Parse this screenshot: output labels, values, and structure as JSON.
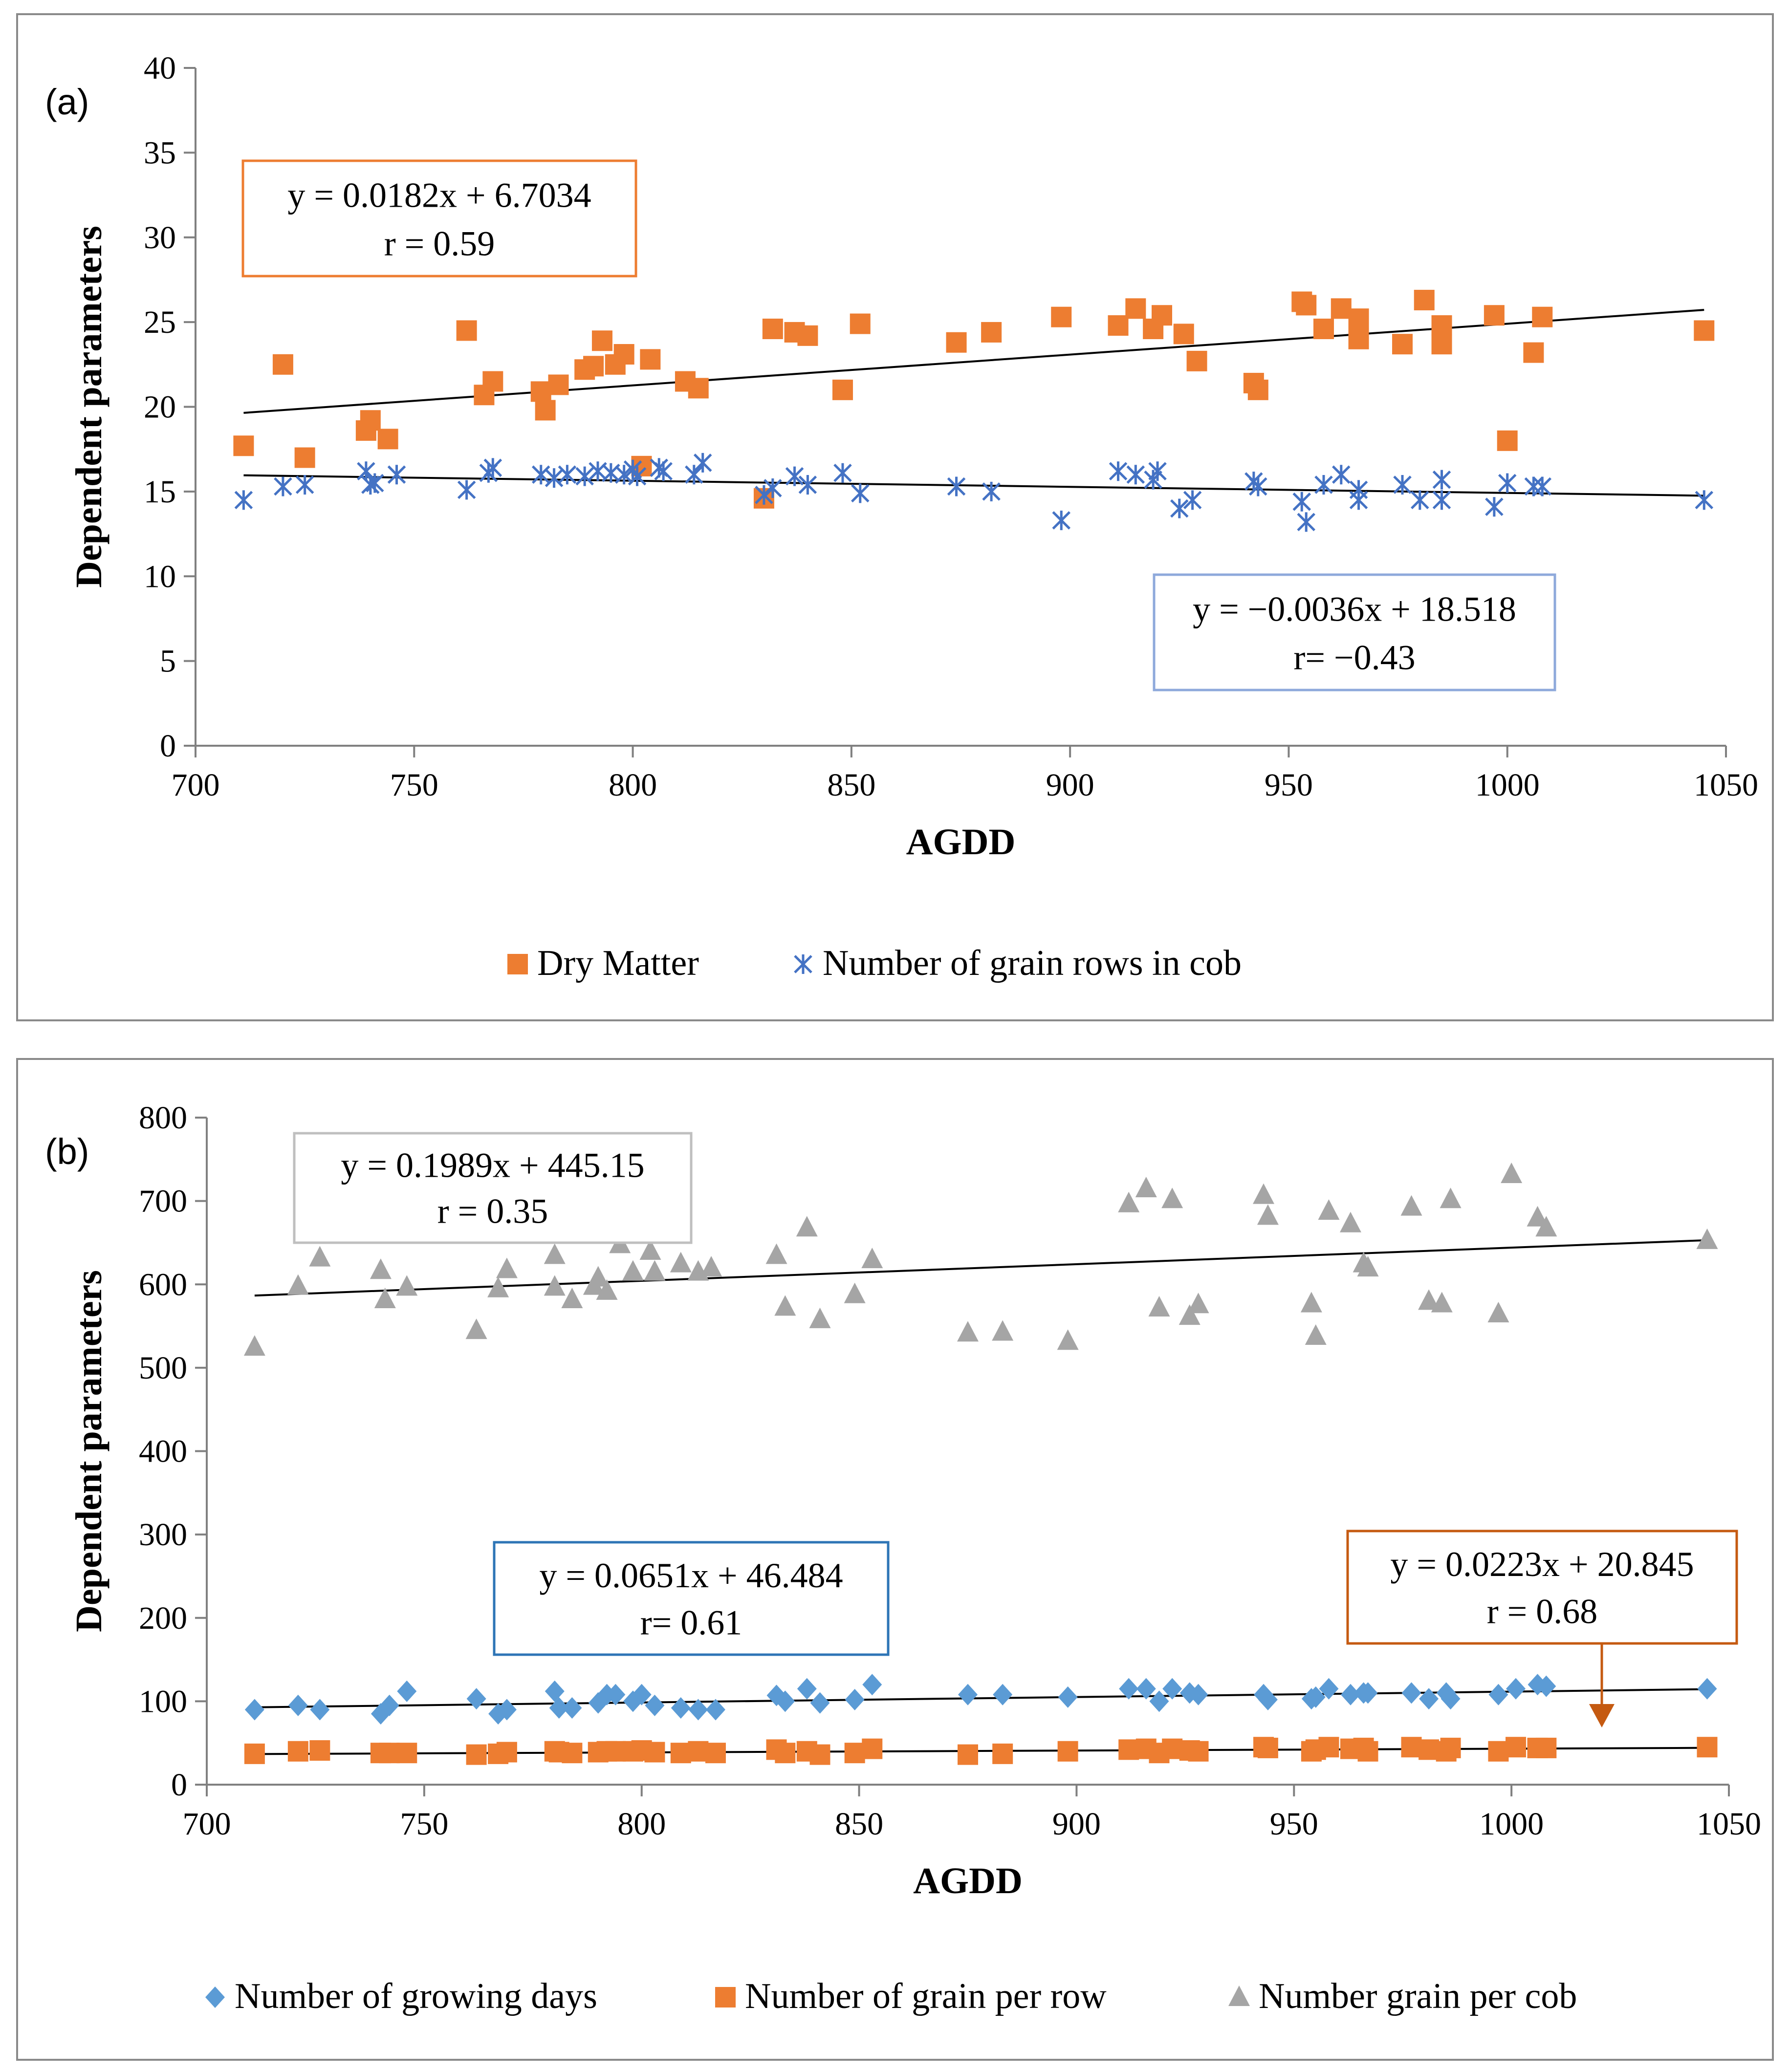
{
  "chart_data": [
    {
      "type": "scatter",
      "panel_label": "(a)",
      "xlabel": "AGDD",
      "ylabel": "Dependent parameters",
      "xlim": [
        700,
        1050
      ],
      "ylim": [
        0,
        40
      ],
      "xticks": [
        "700",
        "750",
        "800",
        "850",
        "900",
        "950",
        "1000",
        "1050"
      ],
      "yticks": [
        "0",
        "5",
        "10",
        "15",
        "20",
        "25",
        "30",
        "35",
        "40"
      ],
      "legend_position": "bottom",
      "series": [
        {
          "name": "Dry Matter",
          "marker": "square",
          "color": "#ED7D31",
          "x": [
            711,
            720,
            725,
            739,
            740,
            744,
            762,
            766,
            768,
            779,
            780,
            783,
            789,
            791,
            793,
            796,
            798,
            802,
            804,
            812,
            815,
            830,
            832,
            837,
            840,
            848,
            852,
            874,
            882,
            898,
            911,
            915,
            919,
            921,
            926,
            929,
            942,
            943,
            953,
            954,
            958,
            962,
            966,
            966,
            976,
            981,
            985,
            985,
            997,
            1000,
            1006,
            1008,
            1045
          ],
          "y": [
            17.7,
            22.5,
            17.0,
            18.6,
            19.2,
            18.1,
            24.5,
            20.7,
            21.5,
            20.9,
            19.8,
            21.3,
            22.2,
            22.4,
            23.9,
            22.5,
            23.1,
            16.5,
            22.8,
            21.5,
            21.1,
            14.6,
            24.6,
            24.4,
            24.2,
            21.0,
            24.9,
            23.8,
            24.4,
            25.3,
            24.8,
            25.8,
            24.6,
            25.4,
            24.3,
            22.7,
            21.4,
            21.0,
            26.2,
            26.0,
            24.6,
            25.8,
            25.2,
            24.0,
            23.7,
            26.3,
            24.8,
            23.7,
            25.4,
            18.0,
            23.2,
            25.3,
            24.5
          ]
        },
        {
          "name": "Number of grain rows in cob",
          "marker": "asterisk",
          "color": "#4472C4",
          "x": [
            711,
            720,
            725,
            739,
            740,
            741,
            746,
            762,
            767,
            768,
            779,
            782,
            785,
            789,
            792,
            795,
            798,
            800,
            801,
            806,
            807,
            814,
            816,
            830,
            832,
            837,
            840,
            848,
            852,
            874,
            882,
            898,
            911,
            915,
            919,
            920,
            925,
            928,
            942,
            943,
            953,
            954,
            958,
            962,
            966,
            966,
            976,
            980,
            985,
            985,
            997,
            1000,
            1006,
            1008,
            1045
          ],
          "y": [
            14.5,
            15.3,
            15.4,
            16.2,
            15.4,
            15.5,
            16.0,
            15.1,
            16.1,
            16.4,
            16.0,
            15.8,
            16.0,
            15.9,
            16.2,
            16.1,
            16.0,
            16.3,
            15.9,
            16.4,
            16.2,
            16.0,
            16.7,
            14.8,
            15.2,
            15.9,
            15.4,
            16.1,
            14.9,
            15.3,
            15.0,
            13.3,
            16.2,
            16.0,
            15.7,
            16.2,
            14.0,
            14.5,
            15.6,
            15.3,
            14.4,
            13.2,
            15.4,
            16.0,
            15.1,
            14.5,
            15.4,
            14.5,
            15.7,
            14.5,
            14.1,
            15.5,
            15.3,
            15.3,
            14.5
          ]
        }
      ],
      "trendlines": [
        {
          "series": "Dry Matter",
          "equation": "y = 0.0182x + 6.7034",
          "r": "r = 0.59",
          "slope": 0.0182,
          "intercept": 6.7034,
          "x_range": [
            711,
            1045
          ],
          "box_color": "#ED7D31"
        },
        {
          "series": "Number of grain rows in cob",
          "equation": "y = −0.0036x + 18.518",
          "r": "r= −0.43",
          "slope": -0.0036,
          "intercept": 18.518,
          "x_range": [
            711,
            1045
          ],
          "box_color": "#8EA9DB"
        }
      ]
    },
    {
      "type": "scatter",
      "panel_label": "(b)",
      "xlabel": "AGDD",
      "ylabel": "Dependent parameters",
      "xlim": [
        700,
        1050
      ],
      "ylim": [
        0,
        800
      ],
      "xticks": [
        "700",
        "750",
        "800",
        "850",
        "900",
        "950",
        "1000",
        "1050"
      ],
      "yticks": [
        "0",
        "100",
        "200",
        "300",
        "400",
        "500",
        "600",
        "700",
        "800"
      ],
      "legend_position": "bottom",
      "series": [
        {
          "name": "Number of growing days",
          "marker": "diamond",
          "color": "#5B9BD5",
          "x": [
            711,
            721,
            726,
            740,
            742,
            746,
            762,
            767,
            769,
            780,
            781,
            784,
            790,
            792,
            794,
            798,
            800,
            803,
            809,
            813,
            817,
            831,
            833,
            838,
            841,
            849,
            853,
            875,
            883,
            898,
            912,
            916,
            919,
            922,
            926,
            928,
            943,
            944,
            954,
            955,
            958,
            963,
            966,
            967,
            977,
            981,
            985,
            986,
            997,
            1001,
            1006,
            1008,
            1045
          ],
          "y": [
            90,
            95,
            90,
            85,
            95,
            112,
            103,
            85,
            90,
            112,
            92,
            92,
            98,
            108,
            108,
            100,
            108,
            95,
            92,
            90,
            90,
            107,
            100,
            115,
            98,
            102,
            120,
            108,
            108,
            105,
            115,
            115,
            100,
            115,
            110,
            108,
            108,
            102,
            103,
            105,
            115,
            108,
            110,
            110,
            110,
            103,
            110,
            103,
            108,
            115,
            120,
            118,
            115
          ]
        },
        {
          "name": "Number of grain per row",
          "marker": "square",
          "color": "#ED7D31",
          "x": [
            711,
            721,
            726,
            740,
            742,
            746,
            762,
            767,
            769,
            780,
            781,
            784,
            790,
            792,
            794,
            798,
            800,
            803,
            809,
            813,
            817,
            831,
            833,
            838,
            841,
            849,
            853,
            875,
            883,
            898,
            912,
            916,
            919,
            922,
            926,
            928,
            943,
            944,
            954,
            955,
            958,
            963,
            966,
            967,
            977,
            981,
            985,
            986,
            997,
            1001,
            1006,
            1008,
            1045
          ],
          "y": [
            37,
            40,
            41,
            38,
            38,
            38,
            36,
            37,
            39,
            40,
            39,
            38,
            39,
            40,
            40,
            40,
            41,
            39,
            38,
            40,
            38,
            42,
            38,
            40,
            36,
            38,
            43,
            36,
            37,
            40,
            42,
            43,
            38,
            43,
            41,
            40,
            45,
            44,
            40,
            42,
            45,
            43,
            44,
            40,
            45,
            42,
            40,
            44,
            40,
            45,
            44,
            44,
            45
          ]
        },
        {
          "name": "Number grain per cob",
          "marker": "triangle",
          "color": "#A5A5A5",
          "x": [
            711,
            721,
            726,
            740,
            741,
            746,
            762,
            767,
            769,
            780,
            780,
            784,
            789,
            790,
            792,
            795,
            798,
            802,
            803,
            809,
            813,
            816,
            831,
            833,
            838,
            841,
            849,
            853,
            875,
            883,
            898,
            912,
            916,
            919,
            922,
            926,
            928,
            943,
            944,
            954,
            955,
            958,
            963,
            966,
            967,
            977,
            981,
            984,
            986,
            997,
            1000,
            1006,
            1008,
            1045
          ],
          "y": [
            525,
            598,
            632,
            617,
            582,
            597,
            545,
            595,
            618,
            597,
            635,
            582,
            598,
            608,
            592,
            648,
            615,
            640,
            615,
            625,
            615,
            620,
            635,
            573,
            668,
            558,
            588,
            630,
            542,
            543,
            532,
            697,
            715,
            572,
            702,
            562,
            576,
            707,
            682,
            577,
            538,
            688,
            673,
            625,
            620,
            693,
            580,
            577,
            702,
            565,
            732,
            680,
            668,
            653
          ]
        }
      ],
      "trendlines": [
        {
          "series": "Number grain per cob",
          "equation": "y = 0.1989x + 445.15",
          "r": "r = 0.35",
          "slope": 0.1989,
          "intercept": 445.15,
          "x_range": [
            711,
            1045
          ],
          "box_color": "#BFBFBF"
        },
        {
          "series": "Number of growing days",
          "equation": "y = 0.0651x + 46.484",
          "r": "r= 0.61",
          "slope": 0.0651,
          "intercept": 46.484,
          "x_range": [
            711,
            1045
          ],
          "box_color": "#2E75B6"
        },
        {
          "series": "Number of grain per row",
          "equation": "y = 0.0223x + 20.845",
          "r": "r = 0.68",
          "slope": 0.0223,
          "intercept": 20.845,
          "x_range": [
            711,
            1045
          ],
          "box_color": "#C55A11"
        }
      ],
      "annotation_arrow_color": "#C55A11"
    }
  ]
}
